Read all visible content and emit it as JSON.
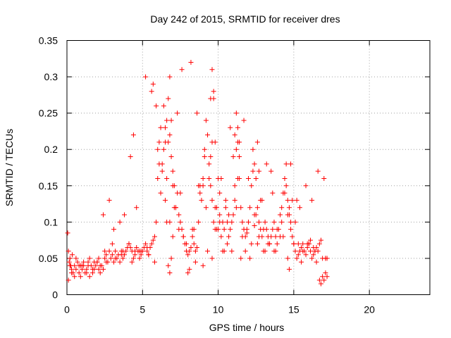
{
  "chart_data": {
    "type": "scatter",
    "title": "Day 242 of 2015, SRMTID for receiver dres",
    "xlabel": "GPS time / hours",
    "ylabel": "SRMTID / TECUs",
    "xlim": [
      0,
      24
    ],
    "ylim": [
      0,
      0.35
    ],
    "xticks": [
      0,
      5,
      10,
      15,
      20
    ],
    "xtick_labels": [
      "0",
      "5",
      "10",
      "15",
      "20"
    ],
    "yticks": [
      0,
      0.05,
      0.1,
      0.15,
      0.2,
      0.25,
      0.3,
      0.35
    ],
    "ytick_labels": [
      "0",
      "0.05",
      "0.1",
      "0.15",
      "0.2",
      "0.25",
      "0.3",
      "0.35"
    ],
    "grid": true,
    "marker": "+",
    "marker_color": "#ff0000",
    "series": [
      {
        "name": "SRMTID",
        "x": [
          0.05,
          0.1,
          0.15,
          0.2,
          0.25,
          0.3,
          0.35,
          0.4,
          0.5,
          0.6,
          0.7,
          0.8,
          0.9,
          1.0,
          1.1,
          1.2,
          1.3,
          1.4,
          1.5,
          1.6,
          1.7,
          1.8,
          1.9,
          2.0,
          2.1,
          2.2,
          2.3,
          2.4,
          2.5,
          2.6,
          2.7,
          2.8,
          2.9,
          3.0,
          3.1,
          3.2,
          3.3,
          3.4,
          3.5,
          3.6,
          3.7,
          3.8,
          3.9,
          4.0,
          4.1,
          4.2,
          4.3,
          4.4,
          4.5,
          4.6,
          4.7,
          4.8,
          4.9,
          5.0,
          5.1,
          5.2,
          5.3,
          5.4,
          5.5,
          5.6,
          5.7,
          5.8,
          5.9,
          6.0,
          6.1,
          6.2,
          6.3,
          6.4,
          6.5,
          6.6,
          6.7,
          6.8,
          6.9,
          7.0,
          7.1,
          7.2,
          7.3,
          7.4,
          7.5,
          7.6,
          7.7,
          7.8,
          7.9,
          8.0,
          8.1,
          8.2,
          8.3,
          8.4,
          8.5,
          8.6,
          8.7,
          8.8,
          8.9,
          9.0,
          9.1,
          9.2,
          9.3,
          9.4,
          9.5,
          9.6,
          9.7,
          9.8,
          9.9,
          10.0,
          10.1,
          10.2,
          10.3,
          10.4,
          10.5,
          10.6,
          10.7,
          10.8,
          10.9,
          11.0,
          11.1,
          11.2,
          11.3,
          11.4,
          11.5,
          11.6,
          11.7,
          11.8,
          11.9,
          12.0,
          12.1,
          12.2,
          12.3,
          12.4,
          12.5,
          12.6,
          12.7,
          12.8,
          12.9,
          13.0,
          13.1,
          13.2,
          13.3,
          13.4,
          13.5,
          13.6,
          13.7,
          13.8,
          13.9,
          14.0,
          14.1,
          14.2,
          14.3,
          14.4,
          14.5,
          14.6,
          14.7,
          14.8,
          14.9,
          15.0,
          15.1,
          15.2,
          15.3,
          15.4,
          15.5,
          15.6,
          15.7,
          15.8,
          15.9,
          16.0,
          16.1,
          16.2,
          16.3,
          16.4,
          16.5,
          16.6,
          16.7,
          16.8,
          16.9,
          17.0,
          17.1,
          17.2,
          0.1,
          0.3,
          0.5,
          0.8,
          1.1,
          1.4,
          1.8,
          2.1,
          2.4,
          2.8,
          3.1,
          3.5,
          3.8,
          4.2,
          4.4,
          4.6,
          5.2,
          5.6,
          5.9,
          6.1,
          6.3,
          6.5,
          6.7,
          6.8,
          6.9,
          7.1,
          7.3,
          7.6,
          8.2,
          8.6,
          9.0,
          9.3,
          9.6,
          9.7,
          9.8,
          10.0,
          10.3,
          10.6,
          10.9,
          11.1,
          11.3,
          11.5,
          11.8,
          12.1,
          12.4,
          12.6,
          12.8,
          13.2,
          13.5,
          13.9,
          14.3,
          14.6,
          14.8,
          15.0,
          15.4,
          15.8,
          16.2,
          16.6,
          17.0,
          6.0,
          6.2,
          6.4,
          6.6,
          6.8,
          7.0,
          7.2,
          7.4,
          7.7,
          8.0,
          8.4,
          8.8,
          9.1,
          9.4,
          9.5,
          9.6,
          9.9,
          10.1,
          10.4,
          10.8,
          11.0,
          11.2,
          11.4,
          11.7,
          12.0,
          12.3,
          12.5,
          12.7,
          13.0,
          13.3,
          13.7,
          14.1,
          14.4,
          14.7,
          14.9,
          15.1,
          15.3,
          15.6,
          16.0,
          16.4,
          16.8,
          17.1,
          0.2,
          0.6,
          1.0,
          1.5,
          2.0,
          2.5,
          3.0,
          3.6,
          4.1,
          4.5,
          4.8,
          5.3,
          5.7,
          6.5,
          6.7,
          6.8,
          9.6,
          9.7,
          11.2,
          11.3,
          12.7,
          14.5,
          14.7,
          0.4,
          0.9,
          1.3,
          1.7,
          2.2,
          2.6,
          3.2,
          3.7,
          4.3,
          4.9,
          5.4,
          5.8,
          7.5,
          7.9,
          8.3,
          8.7,
          9.2,
          10.5,
          11.6,
          12.2,
          13.1,
          13.6,
          14.2,
          15.5,
          15.9,
          16.3,
          16.7,
          17.2,
          6.6,
          6.9,
          9.5,
          9.8,
          10.1,
          11.1,
          11.4,
          12.6,
          12.9,
          14.6,
          14.8,
          7.0,
          8.1,
          8.5,
          9.0,
          10.2,
          10.7,
          11.9,
          12.4,
          13.4,
          13.8,
          15.2,
          16.1,
          16.5,
          16.9,
          17.1
        ],
        "y": [
          0.085,
          0.06,
          0.045,
          0.05,
          0.04,
          0.035,
          0.055,
          0.03,
          0.04,
          0.035,
          0.045,
          0.03,
          0.04,
          0.035,
          0.04,
          0.03,
          0.035,
          0.045,
          0.025,
          0.04,
          0.03,
          0.035,
          0.04,
          0.045,
          0.035,
          0.03,
          0.04,
          0.035,
          0.05,
          0.055,
          0.045,
          0.06,
          0.05,
          0.055,
          0.045,
          0.06,
          0.05,
          0.055,
          0.045,
          0.06,
          0.05,
          0.055,
          0.06,
          0.065,
          0.07,
          0.065,
          0.06,
          0.05,
          0.055,
          0.065,
          0.06,
          0.05,
          0.055,
          0.06,
          0.065,
          0.07,
          0.06,
          0.055,
          0.065,
          0.07,
          0.075,
          0.08,
          0.1,
          0.16,
          0.18,
          0.14,
          0.17,
          0.2,
          0.21,
          0.24,
          0.27,
          0.22,
          0.19,
          0.17,
          0.15,
          0.12,
          0.14,
          0.11,
          0.1,
          0.09,
          0.08,
          0.07,
          0.06,
          0.055,
          0.06,
          0.065,
          0.08,
          0.07,
          0.06,
          0.065,
          0.1,
          0.14,
          0.13,
          0.16,
          0.19,
          0.24,
          0.22,
          0.18,
          0.15,
          0.13,
          0.1,
          0.09,
          0.12,
          0.09,
          0.1,
          0.08,
          0.1,
          0.09,
          0.12,
          0.1,
          0.08,
          0.09,
          0.1,
          0.11,
          0.15,
          0.2,
          0.23,
          0.16,
          0.12,
          0.1,
          0.09,
          0.08,
          0.09,
          0.1,
          0.12,
          0.15,
          0.17,
          0.18,
          0.16,
          0.12,
          0.1,
          0.09,
          0.08,
          0.09,
          0.1,
          0.09,
          0.08,
          0.07,
          0.08,
          0.09,
          0.1,
          0.08,
          0.07,
          0.09,
          0.08,
          0.1,
          0.14,
          0.16,
          0.15,
          0.13,
          0.11,
          0.09,
          0.08,
          0.07,
          0.06,
          0.05,
          0.055,
          0.06,
          0.065,
          0.07,
          0.06,
          0.055,
          0.065,
          0.07,
          0.06,
          0.05,
          0.055,
          0.06,
          0.065,
          0.06,
          0.02,
          0.015,
          0.025,
          0.02,
          0.03,
          0.025,
          0.02,
          0.03,
          0.025,
          0.04,
          0.045,
          0.04,
          0.045,
          0.05,
          0.11,
          0.13,
          0.09,
          0.1,
          0.11,
          0.19,
          0.22,
          0.12,
          0.3,
          0.28,
          0.26,
          0.21,
          0.18,
          0.13,
          0.04,
          0.03,
          0.05,
          0.12,
          0.25,
          0.31,
          0.32,
          0.25,
          0.15,
          0.06,
          0.05,
          0.27,
          0.21,
          0.16,
          0.06,
          0.07,
          0.06,
          0.22,
          0.16,
          0.05,
          0.06,
          0.05,
          0.11,
          0.07,
          0.13,
          0.18,
          0.17,
          0.09,
          0.08,
          0.05,
          0.1,
          0.07,
          0.12,
          0.15,
          0.13,
          0.17,
          0.16,
          0.2,
          0.23,
          0.26,
          0.16,
          0.1,
          0.08,
          0.12,
          0.09,
          0.08,
          0.03,
          0.09,
          0.15,
          0.2,
          0.16,
          0.27,
          0.21,
          0.09,
          0.14,
          0.06,
          0.23,
          0.19,
          0.12,
          0.21,
          0.24,
          0.16,
          0.2,
          0.11,
          0.08,
          0.06,
          0.07,
          0.06,
          0.11,
          0.14,
          0.12,
          0.13,
          0.1,
          0.07,
          0.06,
          0.07,
          0.06,
          0.075,
          0.05,
          0.04,
          0.05,
          0.04,
          0.05,
          0.045,
          0.06,
          0.07,
          0.055,
          0.07,
          0.06,
          0.06,
          0.065,
          0.29,
          0.23,
          0.21,
          0.3,
          0.31,
          0.28,
          0.25,
          0.21,
          0.17,
          0.18,
          0.035,
          0.03,
          0.025,
          0.03,
          0.035,
          0.04,
          0.045,
          0.05,
          0.06,
          0.045,
          0.06,
          0.055,
          0.045,
          0.14,
          0.07,
          0.09,
          0.15,
          0.12,
          0.13,
          0.08,
          0.07,
          0.06,
          0.14,
          0.12,
          0.045,
          0.07,
          0.065,
          0.07,
          0.05,
          0.1,
          0.24,
          0.19,
          0.12,
          0.11,
          0.13,
          0.19,
          0.21,
          0.13,
          0.11,
          0.18,
          0.15,
          0.035,
          0.045,
          0.04,
          0.16,
          0.11,
          0.085,
          0.095,
          0.07,
          0.06,
          0.13,
          0.075,
          0.045,
          0.05,
          0.05
        ]
      }
    ]
  }
}
